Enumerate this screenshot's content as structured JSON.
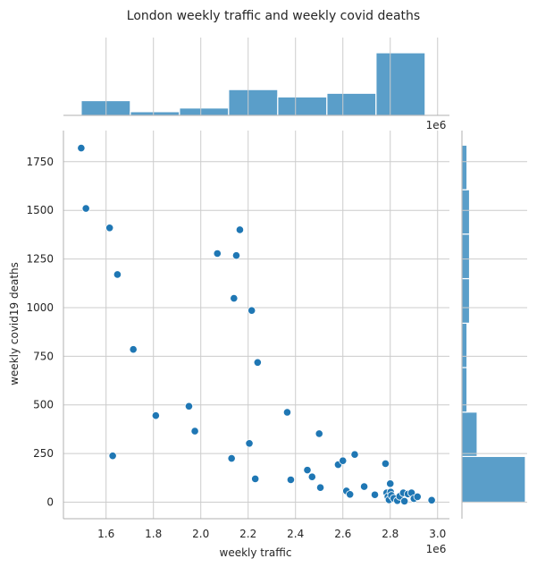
{
  "chart_data": {
    "type": "scatter",
    "title": "London weekly traffic and weekly covid deaths",
    "xlabel": "weekly traffic",
    "ylabel": "weekly covid19 deaths",
    "x_offset_label": "1e6",
    "xlim": [
      1.42,
      3.05
    ],
    "ylim": [
      -85,
      1910
    ],
    "xticks": [
      1.6,
      1.8,
      2.0,
      2.2,
      2.4,
      2.6,
      2.8,
      3.0
    ],
    "xtick_labels": [
      "1.6",
      "1.8",
      "2.0",
      "2.2",
      "2.4",
      "2.6",
      "2.8",
      "3.0"
    ],
    "yticks": [
      0,
      250,
      500,
      750,
      1000,
      1250,
      1500,
      1750
    ],
    "ytick_labels": [
      "0",
      "250",
      "500",
      "750",
      "1000",
      "1250",
      "1500",
      "1750"
    ],
    "grid": true,
    "point_color": "#1f77b4",
    "hist_color": "#5a9ec9",
    "points": [
      {
        "x": 1.495,
        "y": 1820
      },
      {
        "x": 1.515,
        "y": 1510
      },
      {
        "x": 1.615,
        "y": 1410
      },
      {
        "x": 1.628,
        "y": 238
      },
      {
        "x": 1.648,
        "y": 1170
      },
      {
        "x": 1.715,
        "y": 785
      },
      {
        "x": 1.81,
        "y": 445
      },
      {
        "x": 1.95,
        "y": 493
      },
      {
        "x": 1.975,
        "y": 365
      },
      {
        "x": 2.07,
        "y": 1278
      },
      {
        "x": 2.13,
        "y": 225
      },
      {
        "x": 2.14,
        "y": 1048
      },
      {
        "x": 2.15,
        "y": 1268
      },
      {
        "x": 2.165,
        "y": 1400
      },
      {
        "x": 2.205,
        "y": 302
      },
      {
        "x": 2.215,
        "y": 985
      },
      {
        "x": 2.23,
        "y": 120
      },
      {
        "x": 2.24,
        "y": 718
      },
      {
        "x": 2.365,
        "y": 462
      },
      {
        "x": 2.38,
        "y": 115
      },
      {
        "x": 2.45,
        "y": 165
      },
      {
        "x": 2.47,
        "y": 130
      },
      {
        "x": 2.5,
        "y": 352
      },
      {
        "x": 2.505,
        "y": 75
      },
      {
        "x": 2.58,
        "y": 193
      },
      {
        "x": 2.6,
        "y": 213
      },
      {
        "x": 2.615,
        "y": 58
      },
      {
        "x": 2.63,
        "y": 40
      },
      {
        "x": 2.65,
        "y": 245
      },
      {
        "x": 2.69,
        "y": 80
      },
      {
        "x": 2.735,
        "y": 38
      },
      {
        "x": 2.78,
        "y": 198
      },
      {
        "x": 2.785,
        "y": 48
      },
      {
        "x": 2.79,
        "y": 28
      },
      {
        "x": 2.795,
        "y": 12
      },
      {
        "x": 2.8,
        "y": 95
      },
      {
        "x": 2.802,
        "y": 52
      },
      {
        "x": 2.805,
        "y": 35
      },
      {
        "x": 2.815,
        "y": 20
      },
      {
        "x": 2.83,
        "y": 8
      },
      {
        "x": 2.84,
        "y": 30
      },
      {
        "x": 2.855,
        "y": 48
      },
      {
        "x": 2.86,
        "y": 5
      },
      {
        "x": 2.875,
        "y": 42
      },
      {
        "x": 2.89,
        "y": 48
      },
      {
        "x": 2.9,
        "y": 18
      },
      {
        "x": 2.915,
        "y": 28
      },
      {
        "x": 2.975,
        "y": 10
      }
    ],
    "x_histogram": {
      "bin_edges": [
        1.495,
        1.7025,
        1.91,
        2.1175,
        2.325,
        2.5325,
        2.74,
        2.9475
      ],
      "counts": [
        4,
        1,
        2,
        7,
        5,
        6,
        17
      ]
    },
    "y_histogram": {
      "bin_edges": [
        0,
        235,
        463,
        692,
        920,
        1149,
        1378,
        1606,
        1835
      ],
      "counts": [
        25,
        6,
        2,
        2,
        3,
        3,
        3,
        2
      ]
    }
  }
}
